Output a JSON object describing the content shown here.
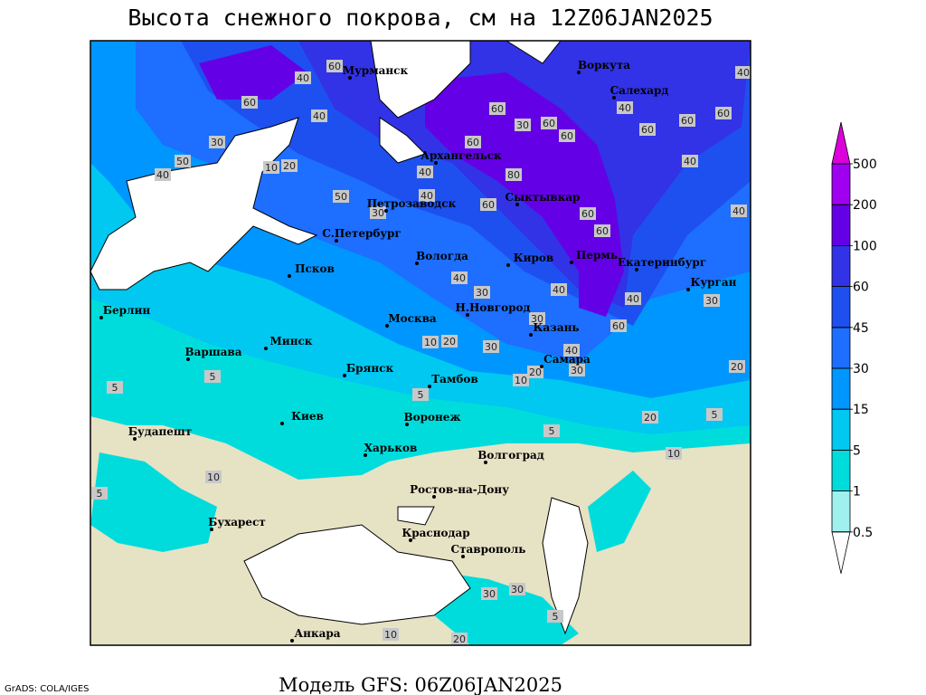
{
  "title": "Высота снежного покрова, см на 12Z06JAN2025",
  "footer": "Модель GFS: 06Z06JAN2025",
  "credit": "GrADS: COLA/IGES",
  "legend": {
    "levels": [
      0.5,
      1,
      5,
      15,
      30,
      45,
      60,
      100,
      200,
      500
    ],
    "colors": [
      "#ffffff",
      "#a0f0f0",
      "#00dcdc",
      "#00c8f0",
      "#0096ff",
      "#1e6eff",
      "#1e50f0",
      "#3232e6",
      "#6400e6",
      "#a000f0",
      "#dc00dc"
    ]
  },
  "cities": [
    "Мурманск",
    "Воркута",
    "Салехард",
    "Архангельск",
    "Петрозаводск",
    "Сыктывкар",
    "С.Петербург",
    "Вологда",
    "Киров",
    "Пермь",
    "Екатеринбург",
    "Курган",
    "Псков",
    "Берлин",
    "Н.Новгород",
    "Москва",
    "Казань",
    "Варшава",
    "Минск",
    "Самара",
    "Брянск",
    "Тамбов",
    "Киев",
    "Воронеж",
    "Будапешт",
    "Харьков",
    "Волгоград",
    "Ростов-на-Дону",
    "Бухарест",
    "Краснодар",
    "Ставрополь",
    "Анкара"
  ],
  "contour_labels": [
    60,
    40,
    60,
    40,
    30,
    50,
    40,
    20,
    10,
    60,
    30,
    60,
    60,
    60,
    80,
    40,
    40,
    50,
    30,
    60,
    60,
    60,
    60,
    40,
    40,
    60,
    60,
    40,
    40,
    40,
    30,
    40,
    30,
    40,
    30,
    60,
    40,
    30,
    20,
    10,
    20,
    30,
    20,
    20,
    10,
    5,
    5,
    5,
    5,
    10,
    5,
    5,
    30,
    20,
    10,
    5,
    30,
    10
  ]
}
